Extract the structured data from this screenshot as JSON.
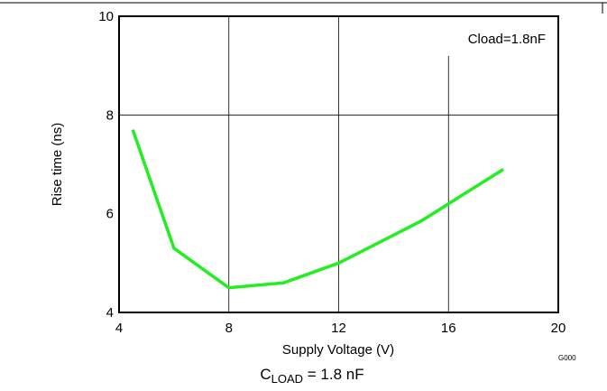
{
  "chart_data": {
    "type": "line",
    "xlabel": "Supply Voltage (V)",
    "ylabel": "Rise time (ns)",
    "xlim": [
      4,
      20
    ],
    "ylim": [
      4,
      10
    ],
    "x_ticks": [
      4,
      8,
      12,
      16,
      20
    ],
    "y_ticks": [
      4,
      6,
      8,
      10
    ],
    "grid": true,
    "annotation": "Cload=1.8nF",
    "figure_code": "G000",
    "caption_main": "C",
    "caption_sub": "LOAD",
    "caption_rest": " = 1.8 nF",
    "series": [
      {
        "color": "#22ee22",
        "x": [
          4.5,
          6,
          8,
          10,
          12,
          15,
          18
        ],
        "y": [
          7.7,
          5.3,
          4.5,
          4.6,
          5.0,
          5.85,
          6.9
        ]
      }
    ]
  }
}
